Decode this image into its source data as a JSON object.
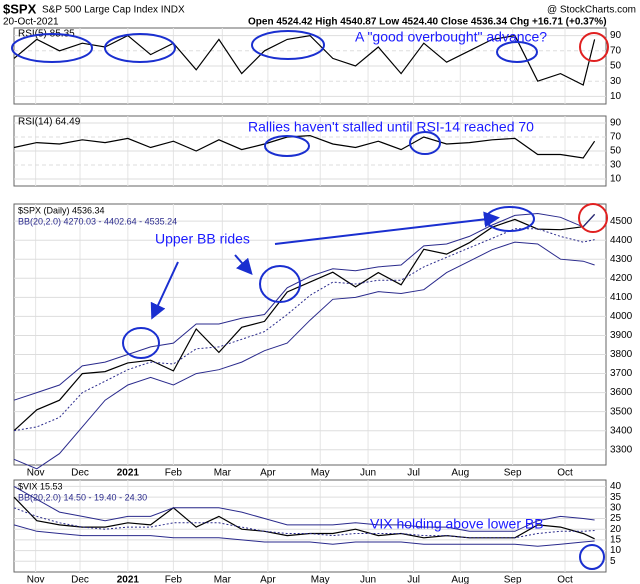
{
  "header": {
    "symbol": "$SPX",
    "name": "S&P 500 Large Cap Index INDX",
    "date": "20-Oct-2021",
    "quote": "Open 4524.42 High 4540.87 Low 4524.40 Close 4536.34 Chg +16.71 (+0.37%)",
    "source": "@ StockCharts.com"
  },
  "chart_data": [
    {
      "type": "line",
      "label": "RSI(5) 85.35",
      "annotation": "A \"good overbought\" advance?",
      "x": [
        0,
        2,
        4,
        6,
        8,
        10,
        12,
        14,
        16,
        18,
        20,
        22,
        24,
        26,
        28,
        30,
        32,
        34,
        36,
        38,
        40,
        42,
        44,
        46,
        48,
        50,
        51
      ],
      "xlim": [
        0,
        52
      ],
      "ylim": [
        0,
        100
      ],
      "yticks": [
        10,
        30,
        50,
        70,
        90
      ],
      "series": [
        {
          "name": "RSI(5)",
          "color": "#000000",
          "values": [
            60,
            85,
            70,
            80,
            75,
            90,
            65,
            80,
            45,
            85,
            40,
            70,
            85,
            90,
            60,
            50,
            75,
            40,
            80,
            55,
            70,
            85,
            90,
            30,
            40,
            25,
            85
          ]
        }
      ]
    },
    {
      "type": "line",
      "label": "RSI(14) 64.49",
      "annotation": "Rallies haven't stalled until RSI-14 reached 70",
      "x": [
        0,
        2,
        4,
        6,
        8,
        10,
        12,
        14,
        16,
        18,
        20,
        22,
        24,
        26,
        28,
        30,
        32,
        34,
        36,
        38,
        40,
        42,
        44,
        46,
        48,
        50,
        51
      ],
      "xlim": [
        0,
        52
      ],
      "ylim": [
        0,
        100
      ],
      "yticks": [
        10,
        30,
        50,
        70,
        90
      ],
      "series": [
        {
          "name": "RSI(14)",
          "color": "#000000",
          "values": [
            55,
            62,
            60,
            66,
            62,
            68,
            55,
            64,
            50,
            66,
            52,
            60,
            70,
            72,
            60,
            55,
            64,
            52,
            70,
            60,
            62,
            66,
            68,
            45,
            45,
            40,
            64
          ]
        }
      ]
    },
    {
      "type": "line",
      "annotation": "Upper BB rides",
      "x": [
        0,
        2,
        4,
        6,
        8,
        10,
        12,
        14,
        16,
        18,
        20,
        22,
        24,
        26,
        28,
        30,
        32,
        34,
        36,
        38,
        40,
        42,
        44,
        46,
        48,
        50,
        51
      ],
      "xlim": [
        0,
        52
      ],
      "xticks": [
        {
          "value": 1.9,
          "label": "Nov"
        },
        {
          "value": 5.8,
          "label": "Dec"
        },
        {
          "value": 10,
          "label": "2021"
        },
        {
          "value": 14,
          "label": "Feb"
        },
        {
          "value": 18.3,
          "label": "Mar"
        },
        {
          "value": 22.3,
          "label": "Apr"
        },
        {
          "value": 26.9,
          "label": "May"
        },
        {
          "value": 31.1,
          "label": "Jun"
        },
        {
          "value": 35.1,
          "label": "Jul"
        },
        {
          "value": 39.2,
          "label": "Aug"
        },
        {
          "value": 43.8,
          "label": "Sep"
        },
        {
          "value": 48.4,
          "label": "Oct"
        }
      ],
      "ylim": [
        3220,
        4590
      ],
      "yticks": [
        3300,
        3400,
        3500,
        3600,
        3700,
        3800,
        3900,
        4000,
        4100,
        4200,
        4300,
        4400,
        4500
      ],
      "series": [
        {
          "name": "$SPX (Daily) 4536.34",
          "color": "#000000",
          "values": [
            3400,
            3510,
            3560,
            3700,
            3710,
            3756,
            3770,
            3714,
            3934,
            3811,
            3943,
            3974,
            4128,
            4180,
            4232,
            4155,
            4230,
            4166,
            4352,
            4327,
            4387,
            4468,
            4509,
            4458,
            4455,
            4471,
            4536
          ]
        },
        {
          "name": "BB(20,2.0) 4270.03 - 4402.64 - 4535.24",
          "color": "#2a2a8c",
          "values": [
            3400,
            3420,
            3470,
            3600,
            3660,
            3720,
            3760,
            3750,
            3830,
            3840,
            3880,
            3920,
            4010,
            4110,
            4180,
            4170,
            4190,
            4190,
            4260,
            4310,
            4360,
            4410,
            4460,
            4460,
            4420,
            4390,
            4403
          ],
          "upper": [
            3560,
            3600,
            3640,
            3740,
            3760,
            3800,
            3840,
            3860,
            3960,
            3960,
            3990,
            4010,
            4150,
            4210,
            4250,
            4240,
            4260,
            4270,
            4370,
            4380,
            4420,
            4480,
            4530,
            4540,
            4520,
            4470,
            4535
          ],
          "lower": [
            3250,
            3200,
            3280,
            3420,
            3560,
            3640,
            3680,
            3640,
            3700,
            3720,
            3760,
            3820,
            3860,
            3980,
            4090,
            4100,
            4130,
            4120,
            4140,
            4230,
            4290,
            4350,
            4390,
            4380,
            4300,
            4290,
            4270
          ]
        }
      ]
    },
    {
      "type": "line",
      "annotation": "VIX holding above lower BB",
      "x": [
        0,
        2,
        4,
        6,
        8,
        10,
        12,
        14,
        16,
        18,
        20,
        22,
        24,
        26,
        28,
        30,
        32,
        34,
        36,
        38,
        40,
        42,
        44,
        46,
        48,
        50,
        51
      ],
      "xlim": [
        0,
        52
      ],
      "xticks": [
        {
          "value": 1.9,
          "label": "Nov"
        },
        {
          "value": 5.8,
          "label": "Dec"
        },
        {
          "value": 10,
          "label": "2021"
        },
        {
          "value": 14,
          "label": "Feb"
        },
        {
          "value": 18.3,
          "label": "Mar"
        },
        {
          "value": 22.3,
          "label": "Apr"
        },
        {
          "value": 26.9,
          "label": "May"
        },
        {
          "value": 31.1,
          "label": "Jun"
        },
        {
          "value": 35.1,
          "label": "Jul"
        },
        {
          "value": 39.2,
          "label": "Aug"
        },
        {
          "value": 43.8,
          "label": "Sep"
        },
        {
          "value": 48.4,
          "label": "Oct"
        }
      ],
      "ylim": [
        0,
        43
      ],
      "yticks": [
        5,
        10,
        15,
        20,
        25,
        30,
        35,
        40
      ],
      "series": [
        {
          "name": "$VIX 15.53",
          "color": "#000000",
          "values": [
            35,
            24,
            22,
            21,
            21,
            23,
            22,
            30,
            21,
            26,
            20,
            19,
            17,
            18,
            18,
            20,
            17,
            18,
            16,
            17,
            16,
            16,
            16,
            22,
            21,
            18,
            15.5
          ]
        },
        {
          "name": "BB(20,2.0) 14.50 - 19.40 - 24.30",
          "color": "#2a2a8c",
          "values": [
            30,
            26,
            23,
            21,
            20,
            21,
            21,
            23,
            23,
            23,
            21,
            19,
            18,
            18,
            17,
            18,
            18,
            18,
            17,
            17,
            16,
            16,
            16,
            18,
            19,
            19,
            19.4
          ],
          "upper": [
            40,
            34,
            28,
            26,
            24,
            26,
            26,
            30,
            30,
            30,
            28,
            25,
            22,
            22,
            22,
            23,
            22,
            22,
            21,
            21,
            19,
            19,
            19,
            24,
            26,
            25,
            24.3
          ],
          "lower": [
            22,
            19,
            18,
            17,
            17,
            17,
            17,
            16,
            16,
            16,
            15,
            14,
            14,
            14,
            13,
            14,
            14,
            14,
            13,
            13,
            13,
            13,
            13,
            12,
            13,
            14,
            14.5
          ]
        }
      ]
    }
  ]
}
